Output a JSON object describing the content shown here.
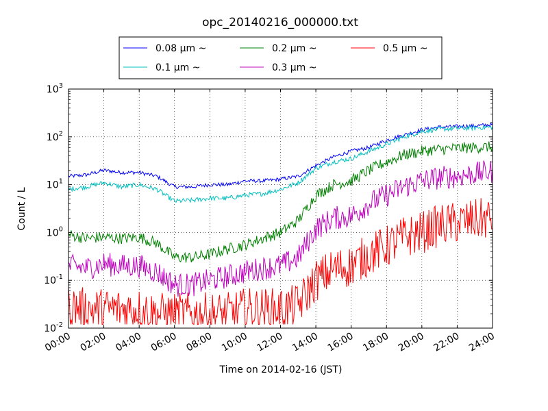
{
  "chart_data": {
    "type": "line",
    "title": "opc_20140216_000000.txt",
    "xlabel": "Time on 2014-02-16 (JST)",
    "ylabel": "Count / L",
    "xlim": [
      "00:00",
      "24:00"
    ],
    "ylim": [
      0.01,
      1000
    ],
    "yscale": "log",
    "grid": true,
    "legend_position": "top-center",
    "x_ticks": [
      "00:00",
      "02:00",
      "04:00",
      "06:00",
      "08:00",
      "10:00",
      "12:00",
      "14:00",
      "16:00",
      "18:00",
      "20:00",
      "22:00",
      "24:00"
    ],
    "y_ticks": [
      {
        "base": "10",
        "exp": "-2"
      },
      {
        "base": "10",
        "exp": "-1"
      },
      {
        "base": "10",
        "exp": "0"
      },
      {
        "base": "10",
        "exp": "1"
      },
      {
        "base": "10",
        "exp": "2"
      },
      {
        "base": "10",
        "exp": "3"
      }
    ],
    "x_hours": [
      0,
      1,
      2,
      3,
      4,
      5,
      6,
      7,
      8,
      9,
      10,
      11,
      12,
      13,
      14,
      15,
      16,
      17,
      18,
      19,
      20,
      21,
      22,
      23,
      24
    ],
    "series": [
      {
        "name": "0.08 μm ~",
        "color": "#0000ff",
        "noise": 0.04,
        "values": [
          15,
          16,
          20,
          18,
          18,
          15,
          9,
          9,
          10,
          10,
          12,
          12,
          13,
          15,
          25,
          38,
          50,
          60,
          85,
          110,
          140,
          160,
          165,
          170,
          180
        ]
      },
      {
        "name": "0.1 μm ~",
        "color": "#00bfbf",
        "noise": 0.05,
        "values": [
          8,
          9,
          11,
          9,
          10,
          8,
          4.5,
          4.7,
          5.2,
          5.2,
          6,
          6.5,
          8,
          11,
          22,
          30,
          35,
          50,
          70,
          100,
          130,
          145,
          150,
          155,
          160
        ]
      },
      {
        "name": "0.2 μm ~",
        "color": "#008000",
        "noise": 0.12,
        "values": [
          0.9,
          0.75,
          0.8,
          0.75,
          0.8,
          0.6,
          0.3,
          0.3,
          0.35,
          0.45,
          0.55,
          0.75,
          1,
          1.8,
          6,
          10,
          12,
          20,
          30,
          42,
          50,
          55,
          58,
          60,
          62
        ]
      },
      {
        "name": "0.3 μm ~",
        "color": "#bf00bf",
        "noise": 0.25,
        "values": [
          0.2,
          0.18,
          0.22,
          0.2,
          0.2,
          0.15,
          0.08,
          0.08,
          0.1,
          0.12,
          0.15,
          0.18,
          0.2,
          0.3,
          1.2,
          2,
          2.2,
          4,
          6,
          9,
          12,
          14,
          15,
          17,
          19
        ]
      },
      {
        "name": "0.5 μm ~",
        "color": "#ff0000",
        "noise": 0.45,
        "values": [
          0.03,
          0.025,
          0.025,
          0.025,
          0.025,
          0.02,
          0.02,
          0.02,
          0.02,
          0.02,
          0.025,
          0.025,
          0.025,
          0.03,
          0.1,
          0.17,
          0.2,
          0.35,
          0.5,
          0.8,
          1,
          1.4,
          1.6,
          1.8,
          2
        ]
      }
    ]
  }
}
